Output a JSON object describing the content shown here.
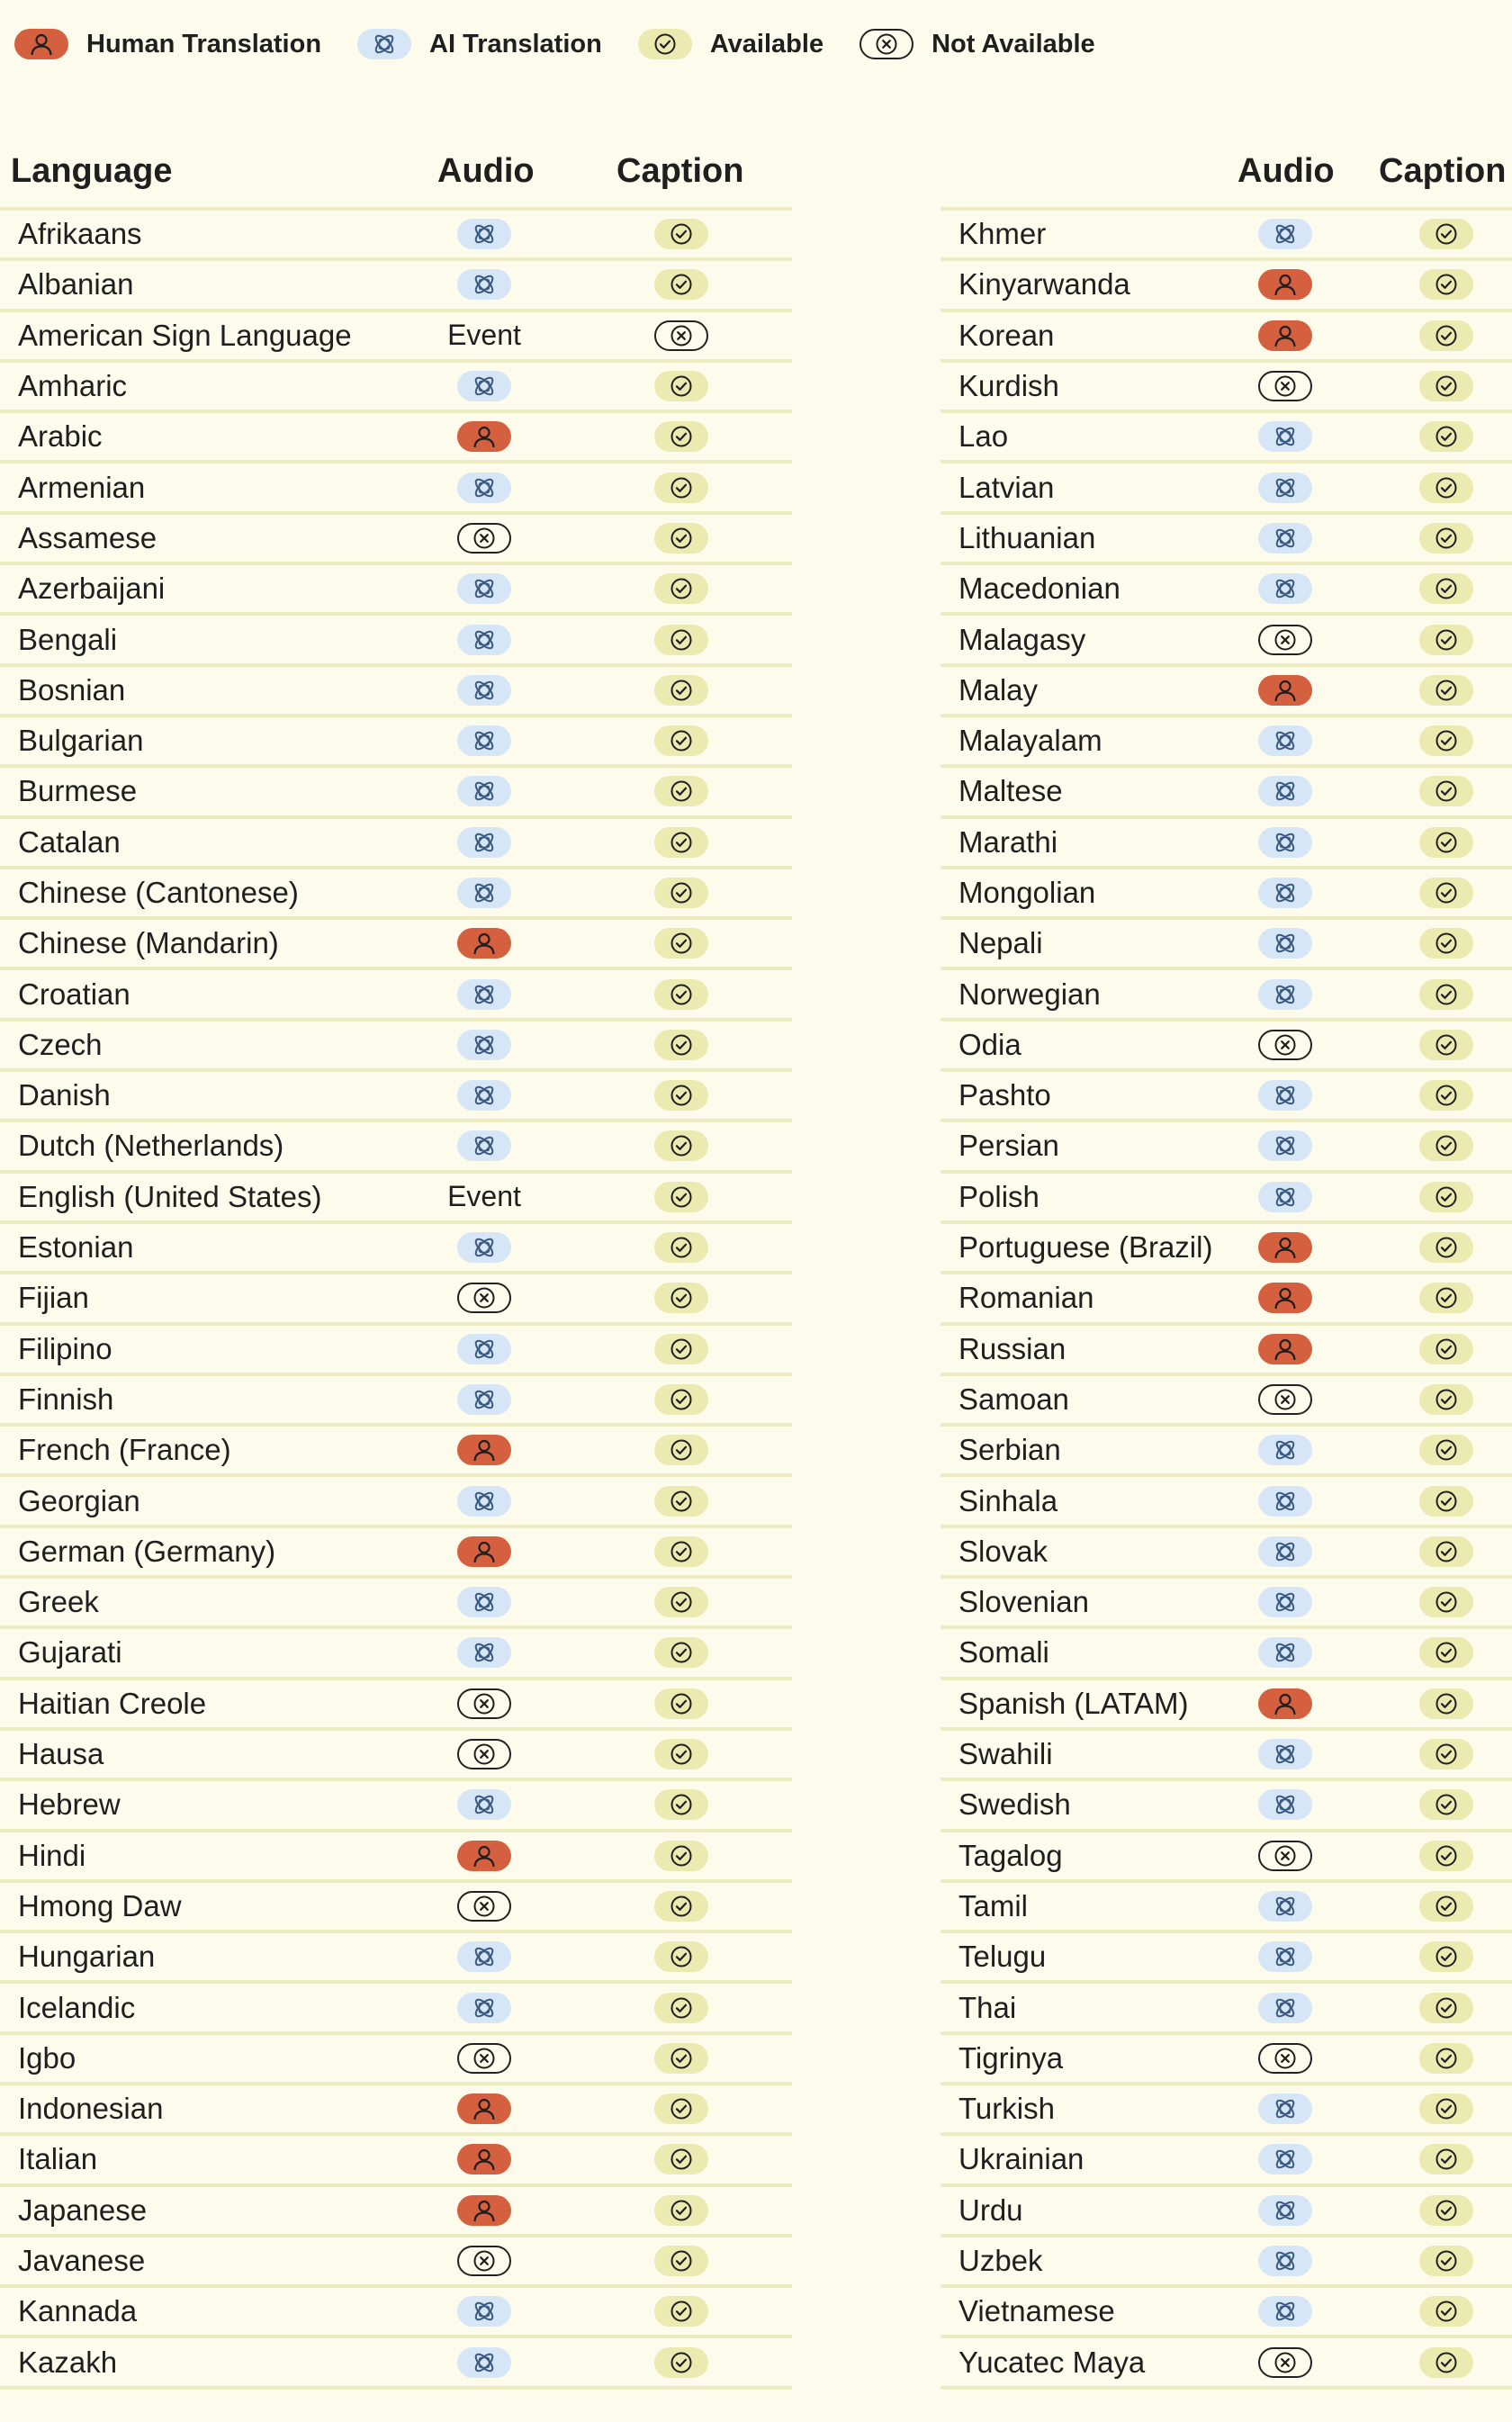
{
  "legend": [
    {
      "type": "human",
      "icon": "person-icon",
      "label": "Human Translation"
    },
    {
      "type": "ai",
      "icon": "ai-icon",
      "label": "AI Translation"
    },
    {
      "type": "avail",
      "icon": "check-circle-icon",
      "label": "Available"
    },
    {
      "type": "na",
      "icon": "x-circle-icon",
      "label": "Not Available"
    }
  ],
  "colors": {
    "background": "#fdfbec",
    "human": "#d5603f",
    "ai": "#d7e6f6",
    "available": "#eaeab1",
    "divider": "#ecebc2",
    "text": "#1f1f1f"
  },
  "tables": {
    "left": {
      "headers": {
        "language": "Language",
        "audio": "Audio",
        "caption": "Caption"
      },
      "rows": [
        {
          "language": "Afrikaans",
          "audio": "ai",
          "caption": "avail"
        },
        {
          "language": "Albanian",
          "audio": "ai",
          "caption": "avail"
        },
        {
          "language": "American Sign Language",
          "audio": "Event",
          "caption": "na"
        },
        {
          "language": "Amharic",
          "audio": "ai",
          "caption": "avail"
        },
        {
          "language": "Arabic",
          "audio": "human",
          "caption": "avail"
        },
        {
          "language": "Armenian",
          "audio": "ai",
          "caption": "avail"
        },
        {
          "language": "Assamese",
          "audio": "na",
          "caption": "avail"
        },
        {
          "language": "Azerbaijani",
          "audio": "ai",
          "caption": "avail"
        },
        {
          "language": "Bengali",
          "audio": "ai",
          "caption": "avail"
        },
        {
          "language": "Bosnian",
          "audio": "ai",
          "caption": "avail"
        },
        {
          "language": "Bulgarian",
          "audio": "ai",
          "caption": "avail"
        },
        {
          "language": "Burmese",
          "audio": "ai",
          "caption": "avail"
        },
        {
          "language": "Catalan",
          "audio": "ai",
          "caption": "avail"
        },
        {
          "language": "Chinese (Cantonese)",
          "audio": "ai",
          "caption": "avail"
        },
        {
          "language": "Chinese (Mandarin)",
          "audio": "human",
          "caption": "avail"
        },
        {
          "language": "Croatian",
          "audio": "ai",
          "caption": "avail"
        },
        {
          "language": "Czech",
          "audio": "ai",
          "caption": "avail"
        },
        {
          "language": "Danish",
          "audio": "ai",
          "caption": "avail"
        },
        {
          "language": "Dutch (Netherlands)",
          "audio": "ai",
          "caption": "avail"
        },
        {
          "language": "English (United States)",
          "audio": "Event",
          "caption": "avail"
        },
        {
          "language": "Estonian",
          "audio": "ai",
          "caption": "avail"
        },
        {
          "language": "Fijian",
          "audio": "na",
          "caption": "avail"
        },
        {
          "language": "Filipino",
          "audio": "ai",
          "caption": "avail"
        },
        {
          "language": "Finnish",
          "audio": "ai",
          "caption": "avail"
        },
        {
          "language": "French (France)",
          "audio": "human",
          "caption": "avail"
        },
        {
          "language": "Georgian",
          "audio": "ai",
          "caption": "avail"
        },
        {
          "language": "German (Germany)",
          "audio": "human",
          "caption": "avail"
        },
        {
          "language": "Greek",
          "audio": "ai",
          "caption": "avail"
        },
        {
          "language": "Gujarati",
          "audio": "ai",
          "caption": "avail"
        },
        {
          "language": "Haitian Creole",
          "audio": "na",
          "caption": "avail"
        },
        {
          "language": "Hausa",
          "audio": "na",
          "caption": "avail"
        },
        {
          "language": "Hebrew",
          "audio": "ai",
          "caption": "avail"
        },
        {
          "language": "Hindi",
          "audio": "human",
          "caption": "avail"
        },
        {
          "language": "Hmong Daw",
          "audio": "na",
          "caption": "avail"
        },
        {
          "language": "Hungarian",
          "audio": "ai",
          "caption": "avail"
        },
        {
          "language": "Icelandic",
          "audio": "ai",
          "caption": "avail"
        },
        {
          "language": "Igbo",
          "audio": "na",
          "caption": "avail"
        },
        {
          "language": "Indonesian",
          "audio": "human",
          "caption": "avail"
        },
        {
          "language": "Italian",
          "audio": "human",
          "caption": "avail"
        },
        {
          "language": "Japanese",
          "audio": "human",
          "caption": "avail"
        },
        {
          "language": "Javanese",
          "audio": "na",
          "caption": "avail"
        },
        {
          "language": "Kannada",
          "audio": "ai",
          "caption": "avail"
        },
        {
          "language": "Kazakh",
          "audio": "ai",
          "caption": "avail"
        }
      ]
    },
    "right": {
      "headers": {
        "language": "",
        "audio": "Audio",
        "caption": "Caption"
      },
      "rows": [
        {
          "language": "Khmer",
          "audio": "ai",
          "caption": "avail"
        },
        {
          "language": "Kinyarwanda",
          "audio": "human",
          "caption": "avail"
        },
        {
          "language": "Korean",
          "audio": "human",
          "caption": "avail"
        },
        {
          "language": "Kurdish",
          "audio": "na",
          "caption": "avail"
        },
        {
          "language": "Lao",
          "audio": "ai",
          "caption": "avail"
        },
        {
          "language": "Latvian",
          "audio": "ai",
          "caption": "avail"
        },
        {
          "language": "Lithuanian",
          "audio": "ai",
          "caption": "avail"
        },
        {
          "language": "Macedonian",
          "audio": "ai",
          "caption": "avail"
        },
        {
          "language": "Malagasy",
          "audio": "na",
          "caption": "avail"
        },
        {
          "language": "Malay",
          "audio": "human",
          "caption": "avail"
        },
        {
          "language": "Malayalam",
          "audio": "ai",
          "caption": "avail"
        },
        {
          "language": "Maltese",
          "audio": "ai",
          "caption": "avail"
        },
        {
          "language": "Marathi",
          "audio": "ai",
          "caption": "avail"
        },
        {
          "language": "Mongolian",
          "audio": "ai",
          "caption": "avail"
        },
        {
          "language": "Nepali",
          "audio": "ai",
          "caption": "avail"
        },
        {
          "language": "Norwegian",
          "audio": "ai",
          "caption": "avail"
        },
        {
          "language": "Odia",
          "audio": "na",
          "caption": "avail"
        },
        {
          "language": "Pashto",
          "audio": "ai",
          "caption": "avail"
        },
        {
          "language": "Persian",
          "audio": "ai",
          "caption": "avail"
        },
        {
          "language": "Polish",
          "audio": "ai",
          "caption": "avail"
        },
        {
          "language": "Portuguese (Brazil)",
          "audio": "human",
          "caption": "avail"
        },
        {
          "language": "Romanian",
          "audio": "human",
          "caption": "avail"
        },
        {
          "language": "Russian",
          "audio": "human",
          "caption": "avail"
        },
        {
          "language": "Samoan",
          "audio": "na",
          "caption": "avail"
        },
        {
          "language": "Serbian",
          "audio": "ai",
          "caption": "avail"
        },
        {
          "language": "Sinhala",
          "audio": "ai",
          "caption": "avail"
        },
        {
          "language": "Slovak",
          "audio": "ai",
          "caption": "avail"
        },
        {
          "language": "Slovenian",
          "audio": "ai",
          "caption": "avail"
        },
        {
          "language": "Somali",
          "audio": "ai",
          "caption": "avail"
        },
        {
          "language": "Spanish (LATAM)",
          "audio": "human",
          "caption": "avail"
        },
        {
          "language": "Swahili",
          "audio": "ai",
          "caption": "avail"
        },
        {
          "language": "Swedish",
          "audio": "ai",
          "caption": "avail"
        },
        {
          "language": "Tagalog",
          "audio": "na",
          "caption": "avail"
        },
        {
          "language": "Tamil",
          "audio": "ai",
          "caption": "avail"
        },
        {
          "language": "Telugu",
          "audio": "ai",
          "caption": "avail"
        },
        {
          "language": "Thai",
          "audio": "ai",
          "caption": "avail"
        },
        {
          "language": "Tigrinya",
          "audio": "na",
          "caption": "avail"
        },
        {
          "language": "Turkish",
          "audio": "ai",
          "caption": "avail"
        },
        {
          "language": "Ukrainian",
          "audio": "ai",
          "caption": "avail"
        },
        {
          "language": "Urdu",
          "audio": "ai",
          "caption": "avail"
        },
        {
          "language": "Uzbek",
          "audio": "ai",
          "caption": "avail"
        },
        {
          "language": "Vietnamese",
          "audio": "ai",
          "caption": "avail"
        },
        {
          "language": "Yucatec Maya",
          "audio": "na",
          "caption": "avail"
        }
      ]
    }
  }
}
